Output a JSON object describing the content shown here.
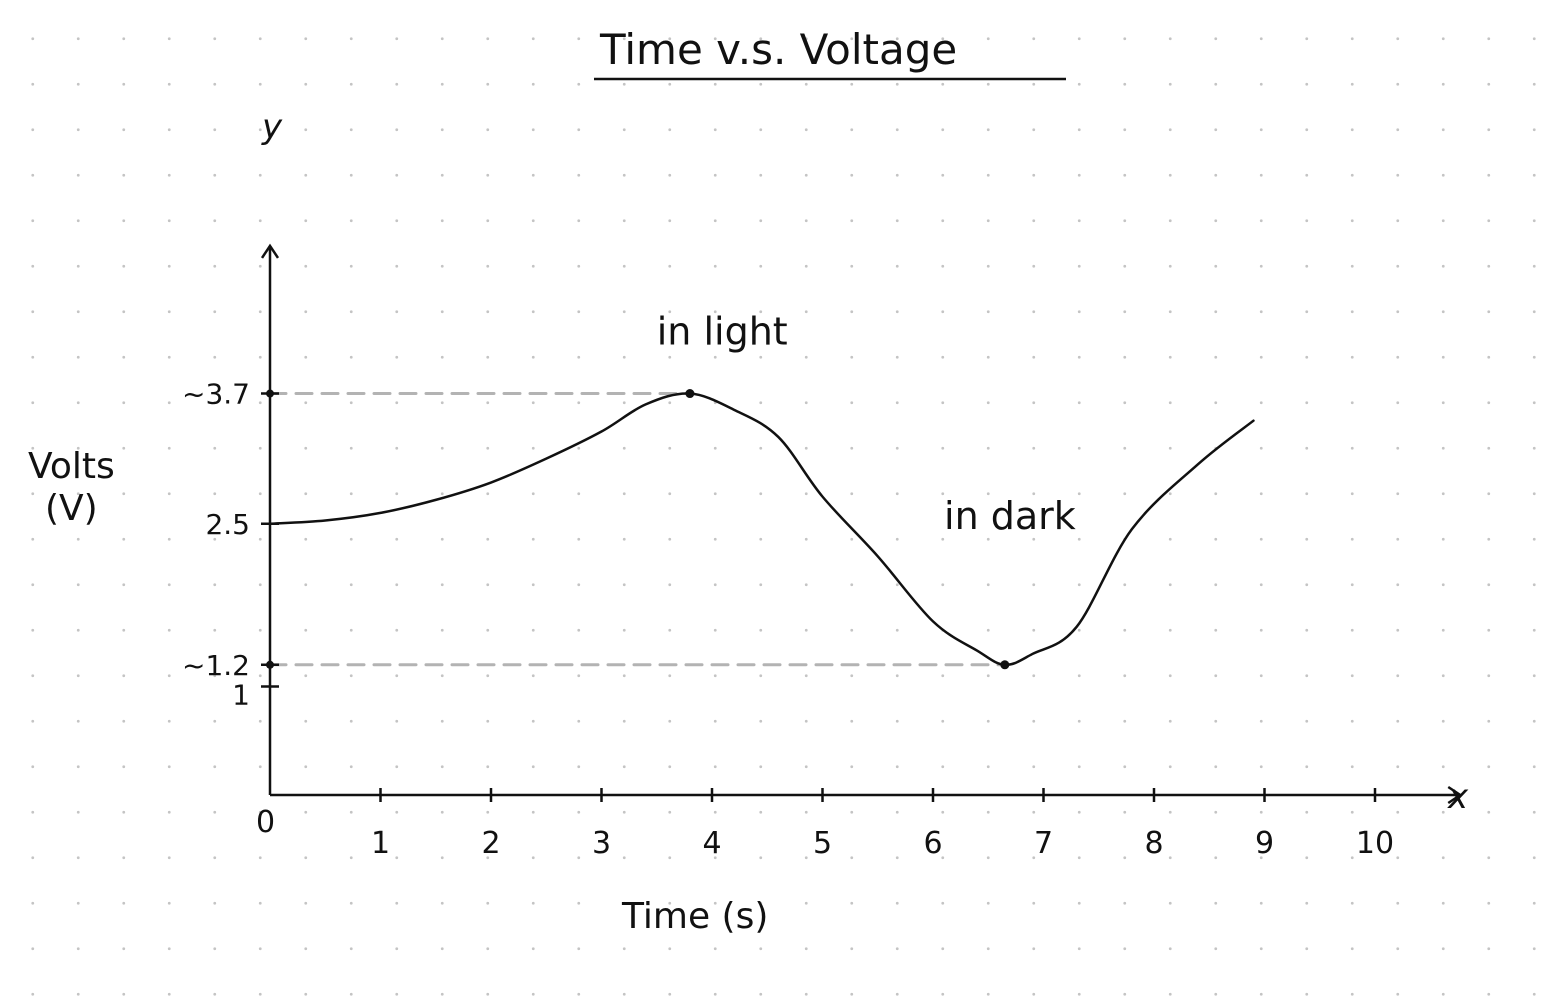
{
  "chart_data": {
    "type": "line",
    "title": "Time v.s. Voltage",
    "xlabel": "Time (s)",
    "ylabel": "Volts",
    "ylabel_unit": "(V)",
    "x_axis_letter": "x",
    "y_axis_letter": "y",
    "origin_label": "0",
    "xlim": [
      0,
      10.5
    ],
    "ylim": [
      0,
      4.6
    ],
    "x_ticks": [
      {
        "value": 1,
        "label": "1"
      },
      {
        "value": 2,
        "label": "2"
      },
      {
        "value": 3,
        "label": "3"
      },
      {
        "value": 4,
        "label": "4"
      },
      {
        "value": 5,
        "label": "5"
      },
      {
        "value": 6,
        "label": "6"
      },
      {
        "value": 7,
        "label": "7"
      },
      {
        "value": 8,
        "label": "8"
      },
      {
        "value": 9,
        "label": "9"
      },
      {
        "value": 10,
        "label": "10"
      }
    ],
    "y_ticks": [
      {
        "value": 3.7,
        "label": "~3.7"
      },
      {
        "value": 2.5,
        "label": "2.5"
      },
      {
        "value": 1.2,
        "label": "~1.2"
      },
      {
        "value": 1,
        "label": "1"
      }
    ],
    "series": [
      {
        "x": [
          0,
          0.5,
          1,
          1.5,
          2,
          2.5,
          3,
          3.4,
          3.8,
          4.2,
          4.6,
          5,
          5.5,
          6,
          6.4,
          6.65,
          6.9,
          7.3,
          7.8,
          8.4,
          8.9
        ],
        "y": [
          2.5,
          2.53,
          2.6,
          2.72,
          2.88,
          3.1,
          3.35,
          3.6,
          3.7,
          3.55,
          3.3,
          2.75,
          2.2,
          1.6,
          1.33,
          1.2,
          1.3,
          1.55,
          2.45,
          3.05,
          3.45
        ]
      }
    ],
    "reference_lines": [
      {
        "y": 3.7,
        "x_end": 3.8,
        "style": "dashed",
        "color": "#b3b3b3"
      },
      {
        "y": 1.2,
        "x_end": 6.65,
        "style": "dashed",
        "color": "#b3b3b3"
      }
    ],
    "highlight_points": [
      {
        "x": 3.8,
        "y": 3.7
      },
      {
        "x": 6.65,
        "y": 1.2
      }
    ],
    "annotations": [
      {
        "text": "in light",
        "x": 3.5,
        "y": 4.15
      },
      {
        "text": "in dark",
        "x": 6.1,
        "y": 2.45
      }
    ],
    "grid": false,
    "colors": {
      "line": "#111111",
      "reference": "#b3b3b3"
    }
  }
}
